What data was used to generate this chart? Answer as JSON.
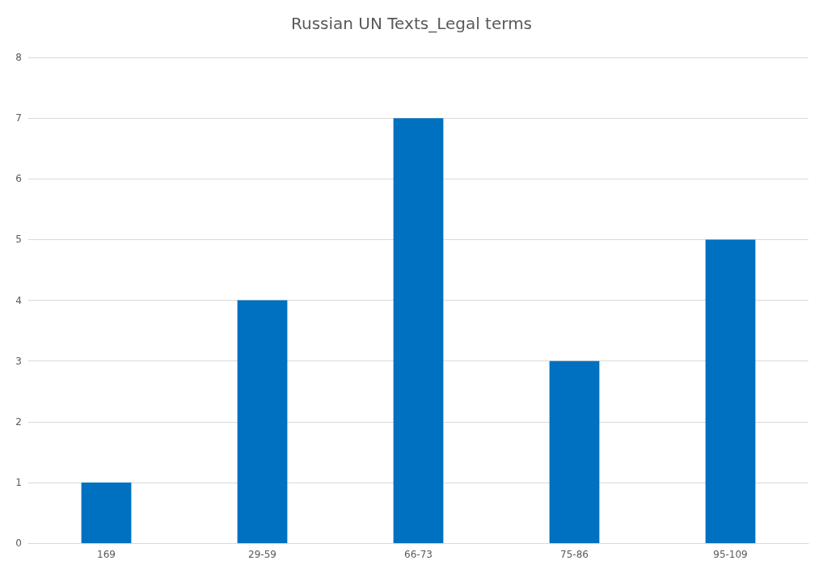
{
  "chart_data": {
    "type": "bar",
    "title": "Russian UN Texts_Legal terms",
    "categories": [
      "169",
      "29-59",
      "66-73",
      "75-86",
      "95-109"
    ],
    "values": [
      1,
      4,
      7,
      3,
      5
    ],
    "color": "#0070c0",
    "ylim": [
      0,
      8
    ],
    "yticks": [
      0,
      1,
      2,
      3,
      4,
      5,
      6,
      7,
      8
    ],
    "grid": "y"
  }
}
